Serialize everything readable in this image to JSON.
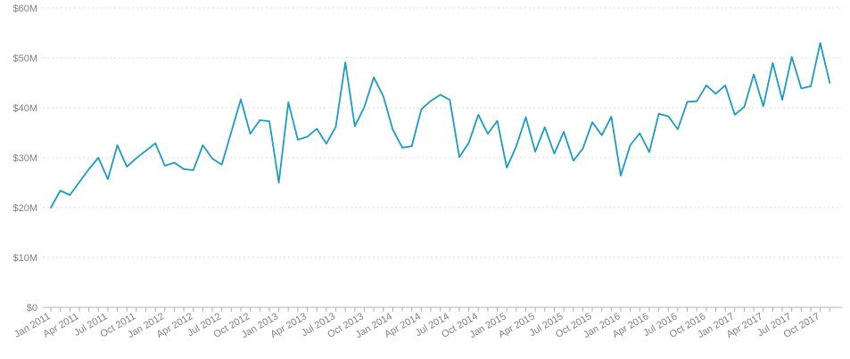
{
  "chart_data": {
    "type": "line",
    "title": "",
    "xlabel": "",
    "ylabel": "",
    "ylim": [
      0,
      60
    ],
    "y_unit": "M",
    "y_ticks": [
      "$0",
      "$10M",
      "$20M",
      "$30M",
      "$40M",
      "$50M",
      "$60M"
    ],
    "x_ticks": [
      "Jan 2011",
      "Apr 2011",
      "Jul 2011",
      "Oct 2011",
      "Jan 2012",
      "Apr 2012",
      "Jul 2012",
      "Oct 2012",
      "Jan 2013",
      "Apr 2013",
      "Jul 2013",
      "Oct 2013",
      "Jan 2014",
      "Apr 2014",
      "Jul 2014",
      "Oct 2014",
      "Jan 2015",
      "Apr 2015",
      "Jul 2015",
      "Oct 2015",
      "Jan 2016",
      "Apr 2016",
      "Jul 2016",
      "Oct 2016",
      "Jan 2017",
      "Apr 2017",
      "Jul 2017",
      "Oct 2017"
    ],
    "grid": true,
    "line_color": "#1a9cc7",
    "x": [
      "2011-01",
      "2011-02",
      "2011-03",
      "2011-04",
      "2011-05",
      "2011-06",
      "2011-07",
      "2011-08",
      "2011-09",
      "2011-10",
      "2011-11",
      "2011-12",
      "2012-01",
      "2012-02",
      "2012-03",
      "2012-04",
      "2012-05",
      "2012-06",
      "2012-07",
      "2012-08",
      "2012-09",
      "2012-10",
      "2012-11",
      "2012-12",
      "2013-01",
      "2013-02",
      "2013-03",
      "2013-04",
      "2013-05",
      "2013-06",
      "2013-07",
      "2013-08",
      "2013-09",
      "2013-10",
      "2013-11",
      "2013-12",
      "2014-01",
      "2014-02",
      "2014-03",
      "2014-04",
      "2014-05",
      "2014-06",
      "2014-07",
      "2014-08",
      "2014-09",
      "2014-10",
      "2014-11",
      "2014-12",
      "2015-01",
      "2015-02",
      "2015-03",
      "2015-04",
      "2015-05",
      "2015-06",
      "2015-07",
      "2015-08",
      "2015-09",
      "2015-10",
      "2015-11",
      "2015-12",
      "2016-01",
      "2016-02",
      "2016-03",
      "2016-04",
      "2016-05",
      "2016-06",
      "2016-07",
      "2016-08",
      "2016-09",
      "2016-10",
      "2016-11",
      "2016-12",
      "2017-01",
      "2017-02",
      "2017-03",
      "2017-04",
      "2017-05",
      "2017-06",
      "2017-07",
      "2017-08",
      "2017-09",
      "2017-10",
      "2017-11"
    ],
    "series": [
      {
        "values": [
          20.0,
          23.4,
          22.5,
          25.1,
          27.7,
          30.0,
          25.7,
          32.5,
          28.2,
          29.9,
          31.4,
          32.9,
          28.4,
          29.0,
          27.7,
          27.5,
          32.5,
          29.8,
          28.6,
          35.2,
          41.7,
          34.8,
          37.5,
          37.3,
          25.0,
          41.1,
          33.6,
          34.2,
          35.8,
          32.8,
          36.2,
          49.1,
          36.3,
          40.1,
          46.1,
          42.3,
          35.6,
          32.0,
          32.3,
          39.7,
          41.4,
          42.6,
          41.6,
          30.1,
          33.0,
          38.6,
          34.8,
          37.4,
          28.0,
          32.3,
          38.1,
          31.2,
          36.1,
          30.8,
          35.2,
          29.4,
          31.8,
          37.1,
          34.5,
          38.2,
          26.4,
          32.5,
          34.9,
          31.1,
          38.8,
          38.3,
          35.7,
          41.2,
          41.3,
          44.5,
          42.8,
          44.5,
          38.6,
          40.2,
          46.7,
          40.3,
          49.0,
          41.6,
          50.2,
          43.9,
          44.3,
          53.0,
          45.0
        ]
      }
    ]
  }
}
